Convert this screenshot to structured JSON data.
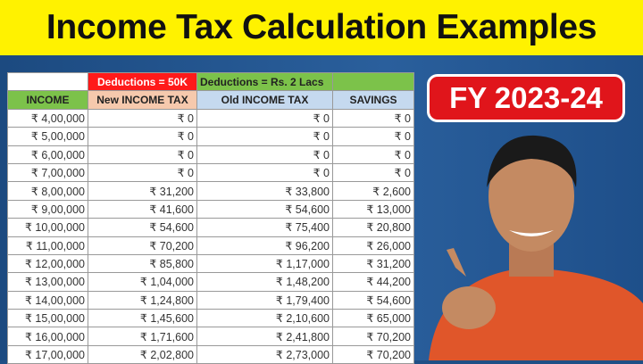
{
  "title": "Income Tax Calculation Examples",
  "badge": "FY 2023-24",
  "table": {
    "group_headers": {
      "new": "Deductions = 50K",
      "old": "Deductions = Rs. 2 Lacs"
    },
    "columns": [
      "INCOME",
      "New INCOME TAX",
      "Old INCOME TAX",
      "SAVINGS"
    ],
    "rows": [
      [
        "₹ 4,00,000",
        "₹ 0",
        "₹ 0",
        "₹ 0"
      ],
      [
        "₹ 5,00,000",
        "₹ 0",
        "₹ 0",
        "₹ 0"
      ],
      [
        "₹ 6,00,000",
        "₹ 0",
        "₹ 0",
        "₹ 0"
      ],
      [
        "₹ 7,00,000",
        "₹ 0",
        "₹ 0",
        "₹ 0"
      ],
      [
        "₹ 8,00,000",
        "₹ 31,200",
        "₹ 33,800",
        "₹ 2,600"
      ],
      [
        "₹ 9,00,000",
        "₹ 41,600",
        "₹ 54,600",
        "₹ 13,000"
      ],
      [
        "₹ 10,00,000",
        "₹ 54,600",
        "₹ 75,400",
        "₹ 20,800"
      ],
      [
        "₹ 11,00,000",
        "₹ 70,200",
        "₹ 96,200",
        "₹ 26,000"
      ],
      [
        "₹ 12,00,000",
        "₹ 85,800",
        "₹ 1,17,000",
        "₹ 31,200"
      ],
      [
        "₹ 13,00,000",
        "₹ 1,04,000",
        "₹ 1,48,200",
        "₹ 44,200"
      ],
      [
        "₹ 14,00,000",
        "₹ 1,24,800",
        "₹ 1,79,400",
        "₹ 54,600"
      ],
      [
        "₹ 15,00,000",
        "₹ 1,45,600",
        "₹ 2,10,600",
        "₹ 65,000"
      ],
      [
        "₹ 16,00,000",
        "₹ 1,71,600",
        "₹ 2,41,800",
        "₹ 70,200"
      ],
      [
        "₹ 17,00,000",
        "₹ 2,02,800",
        "₹ 2,73,000",
        "₹ 70,200"
      ]
    ]
  },
  "colors": {
    "title_bg": "#fff200",
    "badge_bg": "#e0151b",
    "background": "#1f4f86"
  }
}
